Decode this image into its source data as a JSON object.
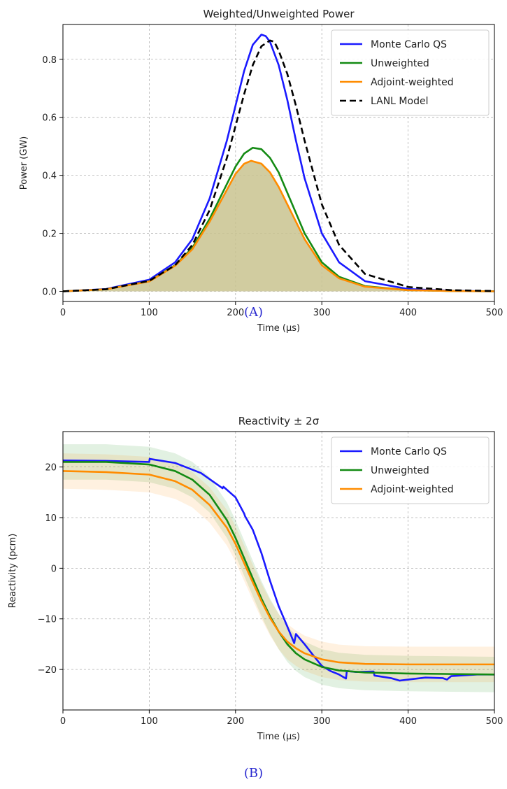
{
  "chart_data": [
    {
      "type": "line",
      "title": "Weighted/Unweighted Power",
      "xlabel": "Time (μs)",
      "ylabel": "Power (GW)",
      "xlim": [
        0,
        500
      ],
      "ylim": [
        -0.035,
        0.92
      ],
      "xticks": [
        0,
        100,
        200,
        300,
        400,
        500
      ],
      "yticks": [
        0.0,
        0.2,
        0.4,
        0.6,
        0.8
      ],
      "ytick_labels": [
        "0.0",
        "0.2",
        "0.4",
        "0.6",
        "0.8"
      ],
      "grid": true,
      "legend_position": "top-right",
      "filled_region": "under Adjoint-weighted (olive shading)",
      "series": [
        {
          "name": "Monte Carlo QS",
          "color": "#1a1aff",
          "style": "solid",
          "x": [
            0,
            50,
            100,
            130,
            150,
            170,
            190,
            200,
            210,
            220,
            230,
            235,
            240,
            250,
            260,
            270,
            280,
            300,
            320,
            350,
            400,
            450,
            500
          ],
          "y": [
            0.0,
            0.008,
            0.04,
            0.1,
            0.18,
            0.32,
            0.52,
            0.64,
            0.76,
            0.85,
            0.885,
            0.88,
            0.86,
            0.78,
            0.66,
            0.52,
            0.39,
            0.2,
            0.1,
            0.035,
            0.008,
            0.002,
            0.0
          ]
        },
        {
          "name": "Unweighted",
          "color": "#138a13",
          "style": "solid",
          "x": [
            0,
            50,
            100,
            130,
            150,
            170,
            190,
            200,
            210,
            220,
            230,
            240,
            250,
            260,
            270,
            280,
            300,
            320,
            350,
            400,
            450,
            500
          ],
          "y": [
            0.0,
            0.007,
            0.035,
            0.09,
            0.15,
            0.25,
            0.37,
            0.43,
            0.475,
            0.495,
            0.49,
            0.46,
            0.41,
            0.34,
            0.27,
            0.2,
            0.1,
            0.05,
            0.018,
            0.004,
            0.001,
            0.0
          ]
        },
        {
          "name": "Adjoint-weighted",
          "color": "#ff8c00",
          "style": "solid",
          "x": [
            0,
            50,
            100,
            130,
            150,
            170,
            190,
            200,
            210,
            218,
            230,
            240,
            250,
            260,
            270,
            280,
            300,
            320,
            350,
            400,
            450,
            500
          ],
          "y": [
            0.0,
            0.007,
            0.034,
            0.088,
            0.145,
            0.24,
            0.35,
            0.405,
            0.44,
            0.45,
            0.44,
            0.41,
            0.36,
            0.3,
            0.24,
            0.18,
            0.09,
            0.045,
            0.016,
            0.004,
            0.001,
            0.0
          ]
        },
        {
          "name": "LANL Model",
          "color": "#000000",
          "style": "dashed",
          "x": [
            0,
            50,
            100,
            130,
            150,
            170,
            190,
            200,
            210,
            220,
            230,
            240,
            245,
            250,
            260,
            270,
            280,
            300,
            320,
            350,
            400,
            450,
            500
          ],
          "y": [
            0.0,
            0.007,
            0.036,
            0.09,
            0.16,
            0.28,
            0.46,
            0.57,
            0.68,
            0.78,
            0.845,
            0.865,
            0.86,
            0.83,
            0.75,
            0.64,
            0.52,
            0.3,
            0.16,
            0.06,
            0.015,
            0.004,
            0.001
          ]
        }
      ]
    },
    {
      "type": "line",
      "title": "Reactivity ± 2σ",
      "xlabel": "Time (μs)",
      "ylabel": "Reactivity (pcm)",
      "xlim": [
        0,
        500
      ],
      "ylim": [
        -28,
        27
      ],
      "xticks": [
        0,
        100,
        200,
        300,
        400,
        500
      ],
      "yticks": [
        -20,
        -10,
        0,
        10,
        20
      ],
      "ytick_labels": [
        "−20",
        "−10",
        "0",
        "10",
        "20"
      ],
      "grid": true,
      "legend_position": "top-right",
      "series": [
        {
          "name": "Monte Carlo QS",
          "color": "#1a1aff",
          "style": "solid",
          "x": [
            0,
            50,
            100,
            100.5,
            130,
            160,
            185,
            186,
            200,
            210,
            211,
            220,
            230,
            240,
            250,
            260,
            268,
            270,
            280,
            290,
            300,
            310,
            320,
            325,
            328,
            329,
            340,
            360,
            361,
            380,
            390,
            400,
            420,
            440,
            445,
            450,
            460,
            480,
            500
          ],
          "y": [
            21.3,
            21.2,
            21.0,
            21.6,
            20.8,
            18.8,
            15.8,
            16.1,
            14.0,
            10.8,
            10.3,
            7.6,
            3.0,
            -2.5,
            -7.5,
            -11.5,
            -14.8,
            -13.0,
            -15.0,
            -17.2,
            -19.3,
            -20.3,
            -21.0,
            -21.5,
            -21.8,
            -20.3,
            -20.5,
            -20.4,
            -21.2,
            -21.7,
            -22.2,
            -22.0,
            -21.6,
            -21.7,
            -22.0,
            -21.3,
            -21.2,
            -21.0,
            -21.0
          ]
        },
        {
          "name": "Unweighted",
          "color": "#138a13",
          "style": "solid",
          "band": 3.5,
          "band_color": "#138a13",
          "x": [
            0,
            50,
            100,
            130,
            150,
            170,
            190,
            200,
            210,
            220,
            230,
            240,
            250,
            260,
            270,
            280,
            300,
            320,
            350,
            400,
            450,
            500
          ],
          "y": [
            21.0,
            21.0,
            20.5,
            19.2,
            17.5,
            14.5,
            9.5,
            6.0,
            2.0,
            -2.0,
            -6.0,
            -9.5,
            -12.5,
            -15.0,
            -16.8,
            -18.0,
            -19.5,
            -20.2,
            -20.6,
            -20.8,
            -20.9,
            -21.0
          ]
        },
        {
          "name": "Adjoint-weighted",
          "color": "#ff8c00",
          "style": "solid",
          "band": 3.5,
          "band_color": "#ff8c00",
          "x": [
            0,
            50,
            100,
            130,
            150,
            170,
            190,
            200,
            210,
            220,
            230,
            240,
            250,
            260,
            270,
            280,
            300,
            320,
            350,
            400,
            450,
            500
          ],
          "y": [
            19.2,
            19.0,
            18.5,
            17.2,
            15.5,
            12.5,
            8.0,
            4.8,
            1.0,
            -2.8,
            -6.5,
            -9.8,
            -12.5,
            -14.5,
            -15.8,
            -16.8,
            -18.0,
            -18.6,
            -18.9,
            -19.0,
            -19.0,
            -19.0
          ]
        }
      ]
    }
  ],
  "captions": [
    "(A)",
    "(B)"
  ]
}
